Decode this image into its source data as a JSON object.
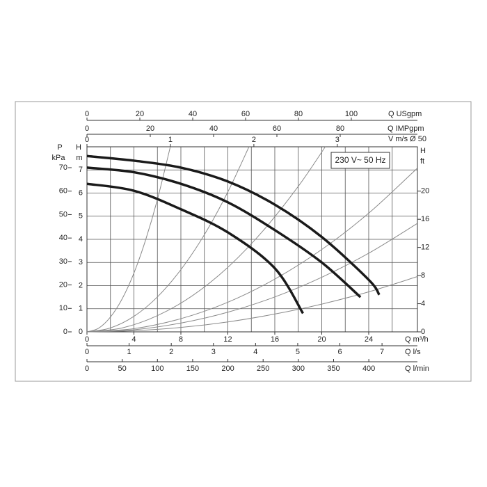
{
  "chart_data": {
    "type": "line",
    "annotation": "230 V~ 50 Hz",
    "x_label": "Q m³/h",
    "xlim": [
      0,
      28.15
    ],
    "xticks": [
      0,
      4,
      8,
      12,
      16,
      20,
      24
    ],
    "xgrid": [
      2,
      4,
      6,
      8,
      10,
      12,
      14,
      16,
      18,
      20,
      22,
      24,
      26
    ],
    "y_label": "H",
    "y_unit": "m",
    "ylim": [
      0,
      8
    ],
    "yticks": [
      0,
      1,
      2,
      3,
      4,
      5,
      6,
      7
    ],
    "grid": true,
    "p_axis": {
      "label": "P",
      "unit": "kPa",
      "lim": [
        0,
        78.9
      ],
      "ticks": [
        0,
        10,
        20,
        30,
        40,
        50,
        60,
        70
      ]
    },
    "ft_axis": {
      "label": "H",
      "unit": "ft",
      "lim": [
        0,
        26.3
      ],
      "ticks": [
        0,
        4,
        8,
        12,
        16,
        20
      ]
    },
    "usgpm_axis": {
      "label": "Q USgpm",
      "lim": [
        0,
        125
      ],
      "ticks": [
        0,
        20,
        40,
        60,
        80,
        100
      ]
    },
    "impgpm_axis": {
      "label": "Q IMPgpm",
      "lim": [
        0,
        104.4
      ],
      "ticks": [
        0,
        20,
        40,
        60,
        80
      ]
    },
    "velocity_axis": {
      "label": "V m/s Ø 50",
      "lim": [
        0,
        3.96
      ],
      "ticks": [
        0,
        1,
        2,
        3
      ]
    },
    "ls_axis": {
      "label": "Q l/s",
      "lim": [
        0,
        7.84
      ],
      "ticks": [
        0,
        1,
        2,
        3,
        4,
        5,
        6,
        7
      ]
    },
    "lmin_axis": {
      "label": "Q l/min",
      "lim": [
        0,
        469
      ],
      "ticks": [
        0,
        50,
        100,
        150,
        200,
        250,
        300,
        350,
        400
      ]
    },
    "series": [
      {
        "color": "#1a1a1a",
        "x": [
          0,
          4,
          8,
          12,
          16,
          20,
          24,
          24.9
        ],
        "values": [
          7.6,
          7.4,
          7.1,
          6.5,
          5.5,
          4.1,
          2.25,
          1.6
        ]
      },
      {
        "color": "#1a1a1a",
        "x": [
          0,
          4,
          8,
          12,
          16,
          20,
          23.3
        ],
        "values": [
          7.1,
          6.9,
          6.4,
          5.6,
          4.4,
          3.0,
          1.5
        ]
      },
      {
        "color": "#1a1a1a",
        "x": [
          0,
          4,
          8,
          12,
          16,
          18.4
        ],
        "values": [
          6.4,
          6.1,
          5.3,
          4.3,
          2.75,
          0.8
        ]
      }
    ],
    "system_curves": [
      {
        "color": "#8a8a8a",
        "x": [
          0,
          1,
          2,
          3,
          4,
          5,
          6,
          7.1
        ],
        "values": [
          0,
          0.16,
          0.64,
          1.43,
          2.54,
          3.98,
          5.72,
          8.0
        ]
      },
      {
        "color": "#8a8a8a",
        "x": [
          0,
          2,
          4,
          6,
          8,
          10,
          12,
          13.8
        ],
        "values": [
          0,
          0.17,
          0.67,
          1.51,
          2.69,
          4.2,
          6.05,
          8.0
        ]
      },
      {
        "color": "#8a8a8a",
        "x": [
          0,
          3,
          6,
          9,
          12,
          15,
          18,
          20.3
        ],
        "values": [
          0,
          0.17,
          0.7,
          1.57,
          2.79,
          4.37,
          6.29,
          8.0
        ]
      },
      {
        "color": "#8a8a8a",
        "x": [
          0,
          4,
          8,
          12,
          16,
          20,
          24,
          28.15
        ],
        "values": [
          0,
          0.14,
          0.57,
          1.28,
          2.28,
          3.56,
          5.13,
          7.08
        ]
      },
      {
        "color": "#8a8a8a",
        "x": [
          0,
          4,
          8,
          12,
          16,
          20,
          24,
          28.15
        ],
        "values": [
          0,
          0.09,
          0.38,
          0.85,
          1.51,
          2.36,
          3.4,
          4.69
        ]
      },
      {
        "color": "#8a8a8a",
        "x": [
          0,
          4,
          8,
          12,
          16,
          20,
          24,
          28.15
        ],
        "values": [
          0,
          0.05,
          0.19,
          0.43,
          0.77,
          1.2,
          1.73,
          2.39
        ]
      }
    ]
  }
}
